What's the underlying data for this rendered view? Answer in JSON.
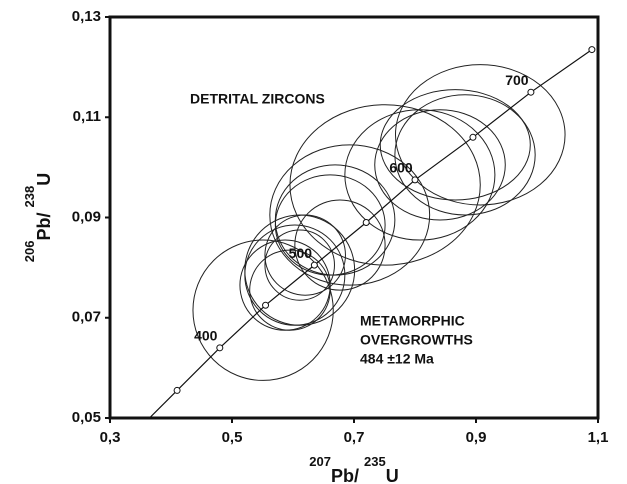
{
  "chart_data": {
    "type": "concordia",
    "xlabel": [
      "207",
      "Pb/ ",
      "235",
      "U"
    ],
    "ylabel": [
      "206",
      "Pb/ ",
      "238",
      "U"
    ],
    "xlim": [
      0.3,
      1.1
    ],
    "ylim": [
      0.05,
      0.13
    ],
    "xticks": [
      {
        "value": 0.3,
        "label": "0,3"
      },
      {
        "value": 0.5,
        "label": "0,5"
      },
      {
        "value": 0.7,
        "label": "0,7"
      },
      {
        "value": 0.9,
        "label": "0,9"
      },
      {
        "value": 1.1,
        "label": "1,1"
      }
    ],
    "yticks": [
      {
        "value": 0.05,
        "label": "0,05"
      },
      {
        "value": 0.07,
        "label": "0,07"
      },
      {
        "value": 0.09,
        "label": "0,09"
      },
      {
        "value": 0.11,
        "label": "0,11"
      },
      {
        "value": 0.13,
        "label": "0,13"
      }
    ],
    "concordia": {
      "x": [
        0.41,
        0.48,
        0.555,
        0.635,
        0.72,
        0.8,
        0.895,
        0.99,
        1.09
      ],
      "y": [
        0.0555,
        0.064,
        0.0725,
        0.0805,
        0.089,
        0.0975,
        0.106,
        0.115,
        0.1235
      ],
      "age_labels": [
        null,
        400,
        null,
        500,
        null,
        600,
        null,
        700,
        null
      ]
    },
    "ellipses": {
      "x": [
        0.551,
        0.587,
        0.603,
        0.611,
        0.595,
        0.611,
        0.62,
        0.661,
        0.669,
        0.693,
        0.677,
        0.751,
        0.808,
        0.841,
        0.882,
        0.907,
        0.866
      ],
      "y": [
        0.0715,
        0.0765,
        0.0785,
        0.0795,
        0.0755,
        0.0805,
        0.0825,
        0.0885,
        0.0895,
        0.0905,
        0.0845,
        0.0965,
        0.0985,
        0.1005,
        0.1025,
        0.1065,
        0.1045
      ],
      "rx": [
        0.115,
        0.074,
        0.082,
        0.09,
        0.066,
        0.057,
        0.066,
        0.09,
        0.098,
        0.131,
        0.074,
        0.156,
        0.123,
        0.107,
        0.115,
        0.139,
        0.123
      ],
      "ry": [
        0.014,
        0.009,
        0.01,
        0.011,
        0.008,
        0.007,
        0.008,
        0.01,
        0.011,
        0.014,
        0.009,
        0.016,
        0.013,
        0.011,
        0.012,
        0.014,
        0.011
      ]
    },
    "annotations": [
      "DETRITAL ZIRCONS",
      "METAMORPHIC",
      "OVERGROWTHS",
      "484 ±12 Ma"
    ]
  }
}
